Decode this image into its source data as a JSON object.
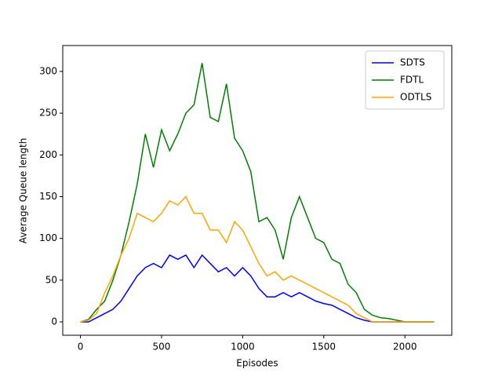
{
  "chart_data": {
    "type": "line",
    "xlabel": "Episodes",
    "ylabel": "Average Queue length",
    "x": [
      0,
      50,
      100,
      150,
      200,
      250,
      300,
      350,
      400,
      450,
      500,
      550,
      600,
      650,
      700,
      750,
      800,
      850,
      900,
      950,
      1000,
      1050,
      1100,
      1150,
      1200,
      1250,
      1300,
      1350,
      1400,
      1450,
      1500,
      1550,
      1600,
      1650,
      1700,
      1750,
      1800,
      1850,
      1900,
      1950,
      2000,
      2050,
      2100,
      2150,
      2180
    ],
    "series": [
      {
        "name": "SDTS",
        "color": "#0000ff",
        "values": [
          0,
          0,
          5,
          10,
          15,
          25,
          40,
          55,
          65,
          70,
          65,
          80,
          75,
          80,
          65,
          80,
          70,
          60,
          65,
          55,
          65,
          55,
          40,
          30,
          30,
          35,
          30,
          35,
          30,
          25,
          22,
          20,
          15,
          10,
          5,
          2,
          0,
          0,
          0,
          0,
          0,
          0,
          0,
          0,
          0
        ]
      },
      {
        "name": "FDTL",
        "color": "#008000",
        "values": [
          0,
          3,
          15,
          25,
          50,
          80,
          120,
          165,
          225,
          185,
          230,
          205,
          225,
          250,
          260,
          310,
          245,
          240,
          285,
          220,
          205,
          180,
          120,
          125,
          110,
          75,
          125,
          150,
          125,
          100,
          95,
          75,
          70,
          45,
          35,
          15,
          8,
          5,
          4,
          2,
          0,
          0,
          0,
          0,
          0
        ]
      },
      {
        "name": "ODTLS",
        "color": "#ffa500",
        "values": [
          0,
          2,
          10,
          35,
          55,
          80,
          100,
          130,
          125,
          120,
          130,
          145,
          140,
          150,
          130,
          130,
          110,
          110,
          95,
          120,
          110,
          90,
          70,
          55,
          60,
          50,
          55,
          50,
          45,
          40,
          35,
          30,
          25,
          20,
          10,
          5,
          0,
          0,
          0,
          0,
          0,
          0,
          0,
          0,
          0
        ]
      }
    ],
    "xlim": [
      -109,
      2289
    ],
    "ylim": [
      -16,
      331
    ],
    "xticks": [
      0,
      500,
      1000,
      1500,
      2000
    ],
    "yticks": [
      0,
      50,
      100,
      150,
      200,
      250,
      300
    ],
    "legend": "upper right"
  }
}
